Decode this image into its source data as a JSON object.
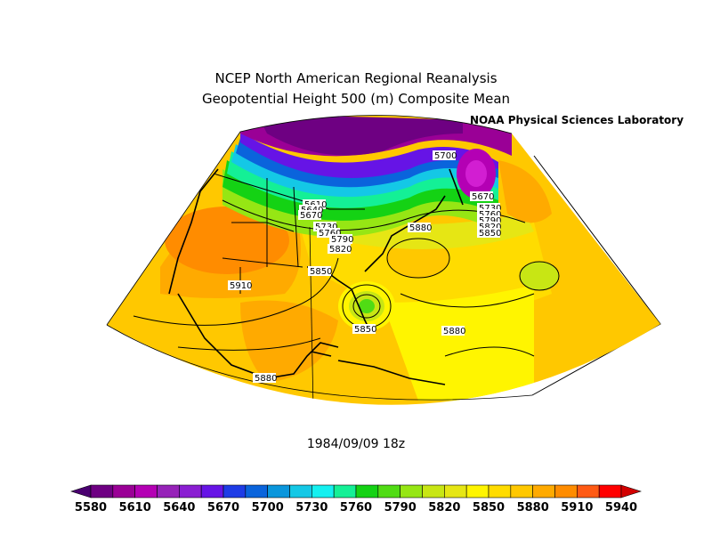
{
  "title_line1": "NCEP North American Regional Reanalysis",
  "title_line2": "Geopotential Height 500 (m) Composite Mean",
  "credit": {
    "logo": "NOAA",
    "text": "Physical Sciences Laboratory"
  },
  "date_label": "1984/09/09 18z",
  "colorbar": {
    "colors": [
      "#4a0070",
      "#6e0082",
      "#9a0096",
      "#b400b4",
      "#9622b8",
      "#8a1ed2",
      "#6614e6",
      "#1e3ce6",
      "#0a64dc",
      "#0a96dc",
      "#14c8e6",
      "#14f0f0",
      "#14f096",
      "#14d214",
      "#50dc14",
      "#96e614",
      "#c8e614",
      "#e6e614",
      "#fff500",
      "#ffdc00",
      "#ffc800",
      "#ffaa00",
      "#ff8c00",
      "#ff5a14",
      "#ff0000",
      "#d20000"
    ],
    "tick_labels": [
      "5580",
      "5610",
      "5640",
      "5670",
      "5700",
      "5730",
      "5760",
      "5790",
      "5820",
      "5850",
      "5880",
      "5910",
      "5940"
    ]
  },
  "contour_labels": [
    "5700",
    "5610",
    "5640",
    "5670",
    "5670",
    "5730",
    "5760",
    "5730",
    "5760",
    "5790",
    "5790",
    "5820",
    "5820",
    "5850",
    "5880",
    "5850",
    "5910",
    "5850",
    "5880",
    "5880"
  ]
}
